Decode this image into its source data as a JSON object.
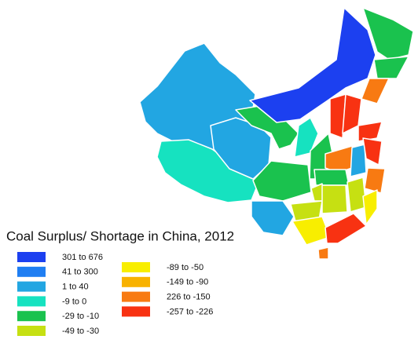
{
  "title": "Coal Surplus/ Shortage in China, 2012",
  "legend": [
    {
      "label": "301 to 676",
      "color": "#1c40f0"
    },
    {
      "label": "41 to 300",
      "color": "#1f7ef2"
    },
    {
      "label": "1 to 40",
      "color": "#22a6e2"
    },
    {
      "label": "-9 to 0",
      "color": "#16e2c0"
    },
    {
      "label": "-29 to -10",
      "color": "#1ac24e"
    },
    {
      "label": "-49 to -30",
      "color": "#c6e012"
    },
    {
      "label": "-89 to -50",
      "color": "#f8ee00"
    },
    {
      "label": "-149 to -90",
      "color": "#f8b200"
    },
    {
      "label": " 226 to -150",
      "color": "#f87a12"
    },
    {
      "label": "-257 to -226",
      "color": "#f83212"
    }
  ]
}
